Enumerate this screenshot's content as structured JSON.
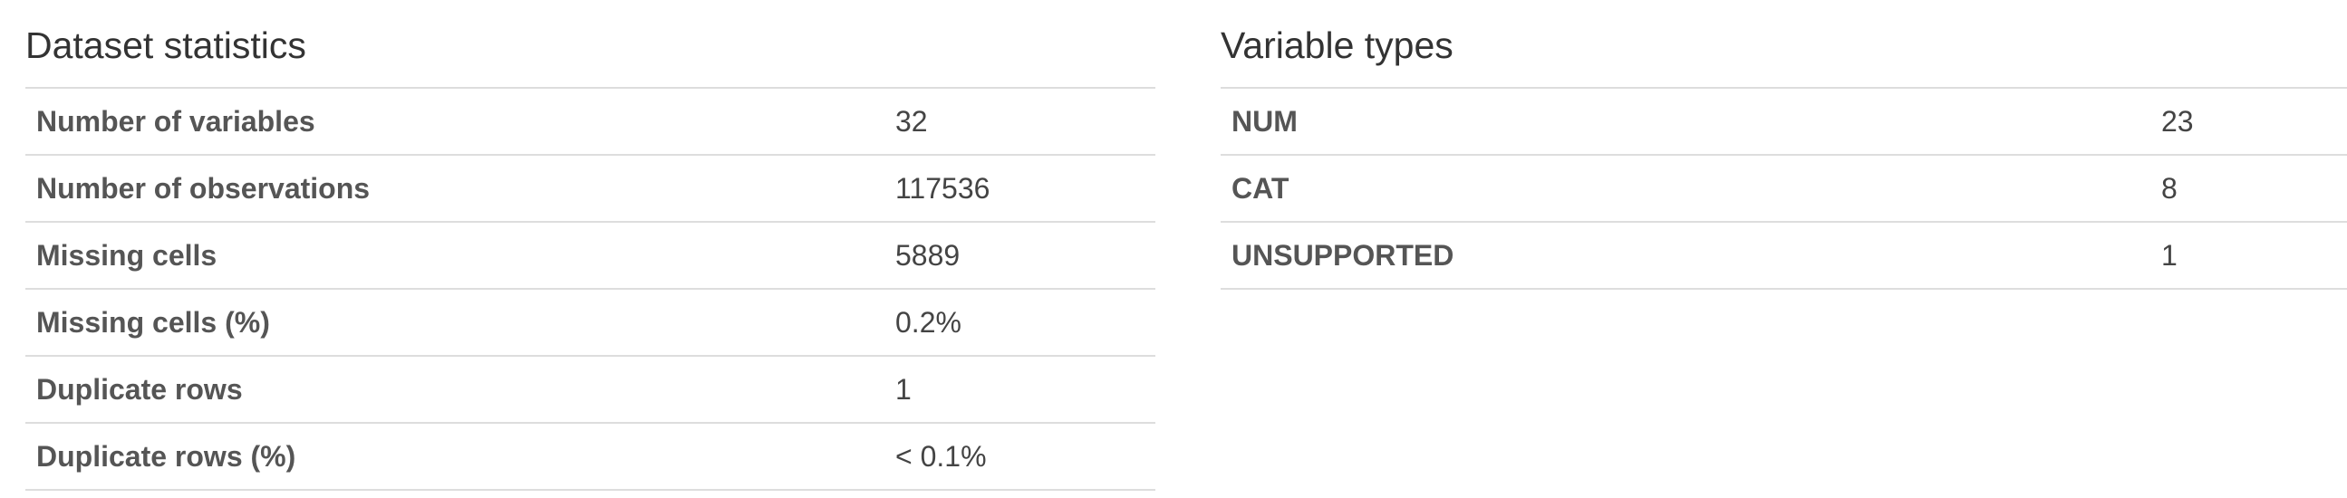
{
  "dataset_statistics": {
    "title": "Dataset statistics",
    "rows": [
      {
        "label": "Number of variables",
        "value": "32"
      },
      {
        "label": "Number of observations",
        "value": "117536"
      },
      {
        "label": "Missing cells",
        "value": "5889"
      },
      {
        "label": "Missing cells (%)",
        "value": "0.2%"
      },
      {
        "label": "Duplicate rows",
        "value": "1"
      },
      {
        "label": "Duplicate rows (%)",
        "value": "< 0.1%"
      }
    ]
  },
  "variable_types": {
    "title": "Variable types",
    "rows": [
      {
        "label": "NUM",
        "value": "23"
      },
      {
        "label": "CAT",
        "value": "8"
      },
      {
        "label": "UNSUPPORTED",
        "value": "1"
      }
    ]
  }
}
